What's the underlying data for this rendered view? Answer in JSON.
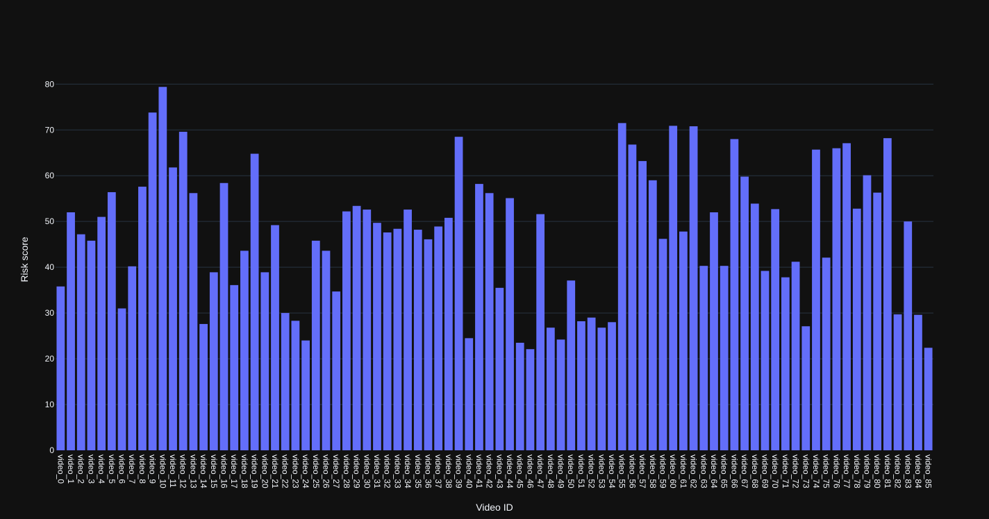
{
  "chart_data": {
    "type": "bar",
    "xlabel": "Video ID",
    "ylabel": "Risk score",
    "ylim": [
      0,
      80.5
    ],
    "yticks": [
      0,
      10,
      20,
      30,
      40,
      50,
      60,
      70,
      80
    ],
    "grid": true,
    "bar_color": "#636efa",
    "background": "#111111",
    "categories": [
      "video_0",
      "video_1",
      "video_2",
      "video_3",
      "video_4",
      "video_5",
      "video_6",
      "video_7",
      "video_8",
      "video_9",
      "video_10",
      "video_11",
      "video_12",
      "video_13",
      "video_14",
      "video_15",
      "video_16",
      "video_17",
      "video_18",
      "video_19",
      "video_20",
      "video_21",
      "video_22",
      "video_23",
      "video_24",
      "video_25",
      "video_26",
      "video_27",
      "video_28",
      "video_29",
      "video_30",
      "video_31",
      "video_32",
      "video_33",
      "video_34",
      "video_35",
      "video_36",
      "video_37",
      "video_38",
      "video_39",
      "video_40",
      "video_41",
      "video_42",
      "video_43",
      "video_44",
      "video_45",
      "video_46",
      "video_47",
      "video_48",
      "video_49",
      "video_50",
      "video_51",
      "video_52",
      "video_53",
      "video_54",
      "video_55",
      "video_56",
      "video_57",
      "video_58",
      "video_59",
      "video_60",
      "video_61",
      "video_62",
      "video_63",
      "video_64",
      "video_65",
      "video_66",
      "video_67",
      "video_68",
      "video_69",
      "video_70",
      "video_71",
      "video_72",
      "video_73",
      "video_74",
      "video_75",
      "video_76",
      "video_77",
      "video_78",
      "video_79",
      "video_80",
      "video_81",
      "video_82",
      "video_83",
      "video_84",
      "video_85"
    ],
    "values": [
      35.8,
      52.0,
      47.2,
      45.8,
      51.0,
      56.4,
      31.0,
      40.2,
      57.6,
      73.8,
      79.4,
      61.8,
      69.6,
      56.2,
      27.6,
      38.9,
      58.4,
      36.1,
      43.6,
      64.8,
      38.9,
      49.2,
      30.0,
      28.3,
      24.0,
      45.8,
      43.6,
      34.7,
      52.2,
      53.4,
      52.6,
      49.7,
      47.6,
      48.4,
      52.6,
      48.2,
      46.1,
      48.9,
      50.8,
      68.5,
      24.5,
      58.2,
      56.2,
      35.5,
      55.1,
      23.5,
      22.1,
      51.6,
      26.8,
      24.2,
      37.1,
      28.2,
      29.0,
      26.8,
      28.0,
      71.5,
      66.8,
      63.2,
      59.0,
      46.2,
      70.9,
      47.8,
      70.8,
      40.3,
      52.0,
      40.3,
      68.0,
      59.8,
      53.9,
      39.2,
      52.7,
      37.8,
      41.2,
      27.1,
      65.7,
      42.1,
      66.0,
      67.1,
      52.8,
      60.1,
      56.3,
      68.2,
      29.7,
      50.0,
      29.6,
      22.4
    ]
  }
}
